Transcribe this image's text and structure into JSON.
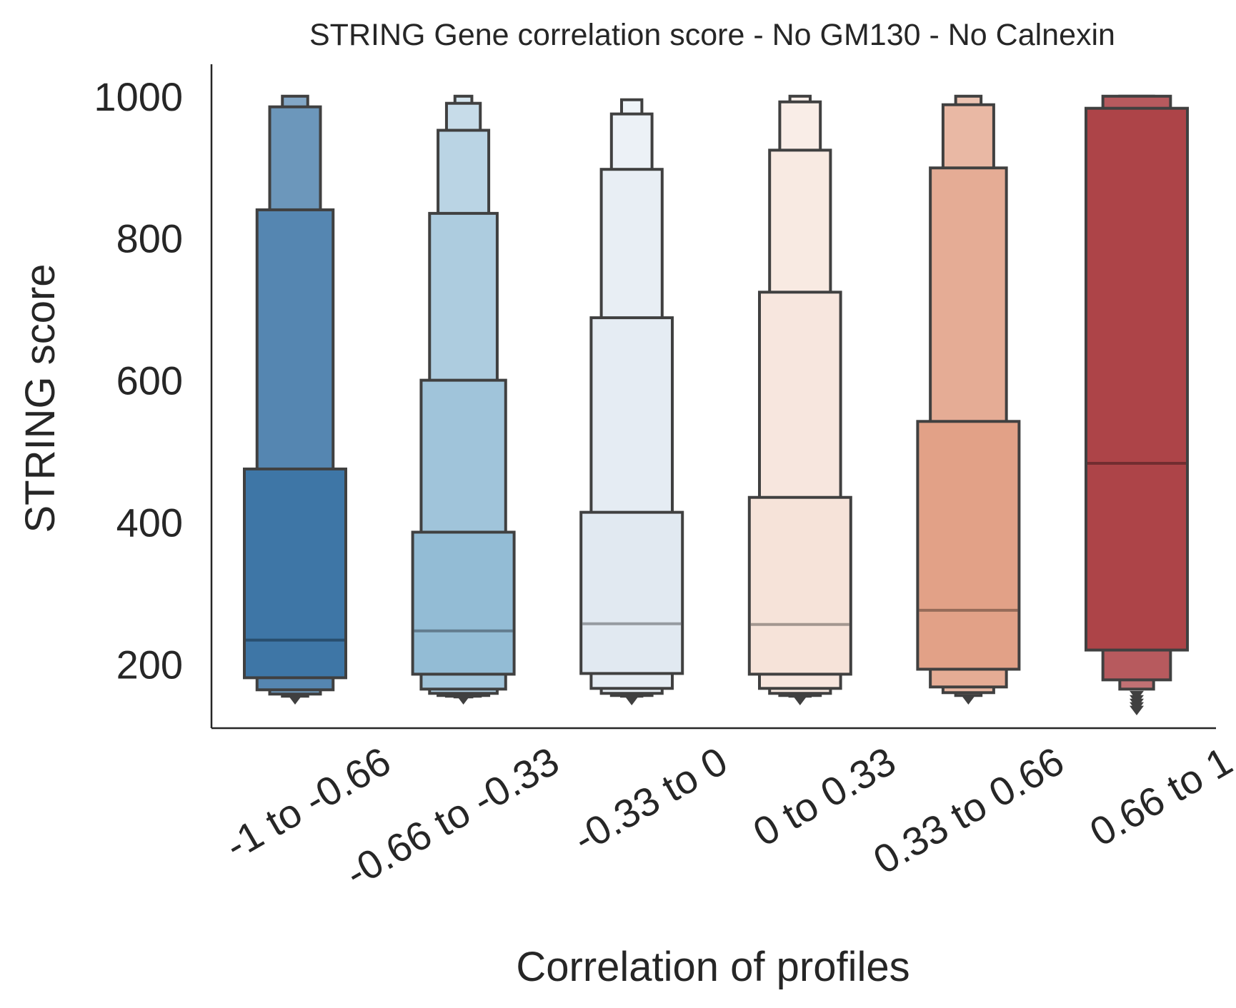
{
  "chart_data": {
    "type": "boxen",
    "title": "STRING Gene correlation score - No GM130 - No Calnexin",
    "xlabel": "Correlation of profiles",
    "ylabel": "STRING score",
    "ylim": [
      110,
      1045
    ],
    "yticks": [
      200,
      400,
      600,
      800,
      1000
    ],
    "ytick_labels": [
      "200",
      "400",
      "600",
      "800",
      "1000"
    ],
    "grid": false,
    "categories": [
      "-1 to -0.66",
      "-0.66 to -0.33",
      "-0.33 to 0",
      "0 to 0.33",
      "0.33 to 0.66",
      "0.66 to 1"
    ],
    "groups": [
      {
        "category": "-1 to -0.66",
        "color": "#3e76a6",
        "median": 234,
        "boxes": [
          {
            "lo": 181,
            "hi": 475
          },
          {
            "lo": 164,
            "hi": 840
          },
          {
            "lo": 158,
            "hi": 985
          },
          {
            "lo": 155,
            "hi": 1000
          }
        ],
        "outliers": [
          152
        ]
      },
      {
        "category": "-0.66 to -0.33",
        "color": "#93bcd5",
        "median": 247,
        "boxes": [
          {
            "lo": 186,
            "hi": 386
          },
          {
            "lo": 165,
            "hi": 600
          },
          {
            "lo": 159,
            "hi": 835
          },
          {
            "lo": 156,
            "hi": 952
          },
          {
            "lo": 155,
            "hi": 990
          },
          {
            "lo": 154,
            "hi": 1000
          }
        ],
        "outliers": [
          152
        ]
      },
      {
        "category": "-0.33 to 0",
        "color": "#e1e9f1",
        "median": 257,
        "boxes": [
          {
            "lo": 187,
            "hi": 414
          },
          {
            "lo": 166,
            "hi": 688
          },
          {
            "lo": 159,
            "hi": 897
          },
          {
            "lo": 156,
            "hi": 975
          },
          {
            "lo": 155,
            "hi": 995
          }
        ],
        "outliers": [
          151
        ]
      },
      {
        "category": "0 to 0.33",
        "color": "#f6e3d9",
        "median": 256,
        "boxes": [
          {
            "lo": 186,
            "hi": 435
          },
          {
            "lo": 166,
            "hi": 724
          },
          {
            "lo": 159,
            "hi": 924
          },
          {
            "lo": 156,
            "hi": 992
          },
          {
            "lo": 155,
            "hi": 1000
          }
        ],
        "outliers": [
          151
        ]
      },
      {
        "category": "0.33 to 0.66",
        "color": "#e2a187",
        "median": 276,
        "boxes": [
          {
            "lo": 193,
            "hi": 542
          },
          {
            "lo": 168,
            "hi": 899
          },
          {
            "lo": 160,
            "hi": 988
          },
          {
            "lo": 156,
            "hi": 1000
          }
        ],
        "outliers": [
          152
        ]
      },
      {
        "category": "0.66 to 1",
        "color": "#ad4448",
        "median": 483,
        "boxes": [
          {
            "lo": 220,
            "hi": 983
          },
          {
            "lo": 178,
            "hi": 1000
          },
          {
            "lo": 165,
            "hi": 1000
          }
        ],
        "outliers": [
          158,
          152,
          147,
          142,
          137
        ]
      }
    ]
  }
}
